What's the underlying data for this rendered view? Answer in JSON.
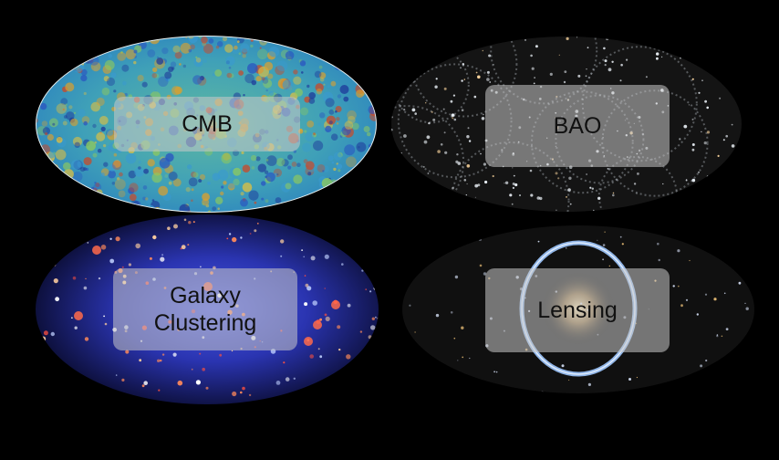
{
  "panels": {
    "cmb": {
      "label": "CMB",
      "image": "cmb-sky-map"
    },
    "bao": {
      "label": "BAO",
      "image": "bao-galaxy-shells"
    },
    "galaxy_clustering": {
      "label": "Galaxy\nClustering",
      "image": "galaxy-cluster-field"
    },
    "lensing": {
      "label": "Lensing",
      "image": "einstein-ring"
    }
  }
}
